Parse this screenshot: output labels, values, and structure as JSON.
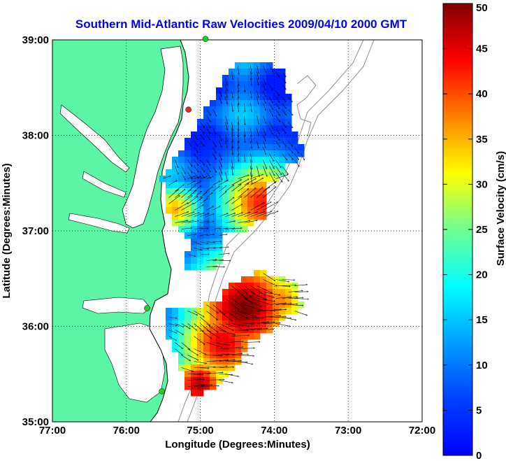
{
  "chart_data": {
    "type": "heatmap",
    "title": "Southern Mid-Atlantic Raw Velocities 2009/04/10 2000 GMT",
    "xlabel": "Longitude (Degrees:Minutes)",
    "ylabel": "Latitude (Degrees:Minutes)",
    "xlim": [
      -77,
      -72
    ],
    "ylim": [
      35,
      39
    ],
    "x_ticks": [
      {
        "value": -77,
        "label": "77:00"
      },
      {
        "value": -76,
        "label": "76:00"
      },
      {
        "value": -75,
        "label": "75:00"
      },
      {
        "value": -74,
        "label": "74:00"
      },
      {
        "value": -73,
        "label": "73:00"
      },
      {
        "value": -72,
        "label": "72:00"
      }
    ],
    "y_ticks": [
      {
        "value": 35,
        "label": "35:00"
      },
      {
        "value": 36,
        "label": "36:00"
      },
      {
        "value": 37,
        "label": "37:00"
      },
      {
        "value": 38,
        "label": "38:00"
      },
      {
        "value": 39,
        "label": "39:00"
      }
    ],
    "grid": true,
    "colorbar": {
      "label": "Surface Velocity (cm/s)",
      "min": 0,
      "max": 50,
      "ticks": [
        0,
        5,
        10,
        15,
        20,
        25,
        30,
        35,
        40,
        45,
        50
      ],
      "colormap": "jet"
    },
    "land_color": "#5cf5a6",
    "stations": [
      {
        "lon": -74.93,
        "lat": 39.01,
        "color": "#22cc22"
      },
      {
        "lon": -75.16,
        "lat": 38.27,
        "color": "#ff2020"
      },
      {
        "lon": -75.72,
        "lat": 36.19,
        "color": "#22cc22"
      },
      {
        "lon": -75.52,
        "lat": 35.32,
        "color": "#22cc22"
      }
    ]
  }
}
